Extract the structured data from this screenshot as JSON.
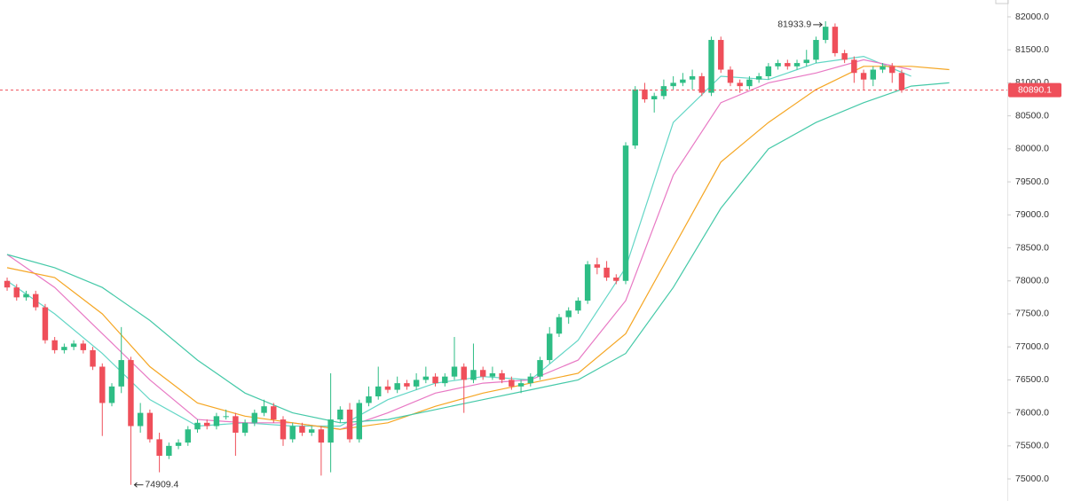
{
  "chart_data": {
    "type": "candlestick",
    "up_color": "#2ebd85",
    "down_color": "#ef4f5a",
    "ylim": [
      74665,
      82255
    ],
    "xlim": [
      -0.75,
      105.1
    ],
    "yticks": [
      {
        "value": 75000,
        "label": "75000.0"
      },
      {
        "value": 75500,
        "label": "75500.0"
      },
      {
        "value": 76000,
        "label": "76000.0"
      },
      {
        "value": 76500,
        "label": "76500.0"
      },
      {
        "value": 77000,
        "label": "77000.0"
      },
      {
        "value": 77500,
        "label": "77500.0"
      },
      {
        "value": 78000,
        "label": "78000.0"
      },
      {
        "value": 78500,
        "label": "78500.0"
      },
      {
        "value": 79000,
        "label": "79000.0"
      },
      {
        "value": 79500,
        "label": "79500.0"
      },
      {
        "value": 80000,
        "label": "80000.0"
      },
      {
        "value": 80500,
        "label": "80500.0"
      },
      {
        "value": 81000,
        "label": "81000.0"
      },
      {
        "value": 81500,
        "label": "81500.0"
      },
      {
        "value": 82000,
        "label": "82000.0"
      }
    ],
    "candles": [
      [
        78000,
        78050,
        77850,
        77900
      ],
      [
        77900,
        77950,
        77700,
        77750
      ],
      [
        77750,
        77850,
        77700,
        77800
      ],
      [
        77800,
        77850,
        77550,
        77600
      ],
      [
        77600,
        77650,
        77050,
        77100
      ],
      [
        77100,
        77150,
        76900,
        76950
      ],
      [
        76950,
        77050,
        76900,
        77000
      ],
      [
        77000,
        77100,
        76950,
        77050
      ],
      [
        77050,
        77100,
        76900,
        76950
      ],
      [
        76950,
        77000,
        76650,
        76700
      ],
      [
        76700,
        76750,
        75650,
        76150
      ],
      [
        76150,
        76450,
        76100,
        76400
      ],
      [
        76400,
        77300,
        76300,
        76800
      ],
      [
        76800,
        76850,
        74909.4,
        75800
      ],
      [
        75800,
        76150,
        75700,
        76000
      ],
      [
        76000,
        76050,
        75550,
        75600
      ],
      [
        75600,
        75700,
        75100,
        75350
      ],
      [
        75350,
        75550,
        75300,
        75500
      ],
      [
        75500,
        75600,
        75450,
        75550
      ],
      [
        75550,
        75800,
        75500,
        75750
      ],
      [
        75750,
        75900,
        75700,
        75850
      ],
      [
        75850,
        75900,
        75750,
        75800
      ],
      [
        75800,
        76000,
        75750,
        75950
      ],
      [
        75950,
        76050,
        75900,
        75950
      ],
      [
        75950,
        76000,
        75350,
        75700
      ],
      [
        75700,
        75900,
        75650,
        75850
      ],
      [
        75850,
        76050,
        75800,
        76000
      ],
      [
        76000,
        76200,
        75950,
        76100
      ],
      [
        76100,
        76150,
        75850,
        75900
      ],
      [
        75900,
        75950,
        75500,
        75600
      ],
      [
        75600,
        75850,
        75550,
        75800
      ],
      [
        75800,
        75850,
        75650,
        75700
      ],
      [
        75700,
        75800,
        75650,
        75750
      ],
      [
        75750,
        75800,
        75050,
        75550
      ],
      [
        75550,
        76600,
        75100,
        75900
      ],
      [
        75900,
        76100,
        75850,
        76050
      ],
      [
        76050,
        76150,
        75550,
        75600
      ],
      [
        75600,
        76200,
        75550,
        76150
      ],
      [
        76150,
        76400,
        76100,
        76250
      ],
      [
        76250,
        76700,
        76200,
        76400
      ],
      [
        76400,
        76500,
        76300,
        76350
      ],
      [
        76350,
        76550,
        76300,
        76450
      ],
      [
        76450,
        76500,
        76350,
        76400
      ],
      [
        76400,
        76600,
        76350,
        76500
      ],
      [
        76500,
        76700,
        76450,
        76550
      ],
      [
        76550,
        76600,
        76400,
        76450
      ],
      [
        76450,
        76600,
        76400,
        76550
      ],
      [
        76550,
        77150,
        76500,
        76700
      ],
      [
        76700,
        76750,
        76000,
        76500
      ],
      [
        76500,
        77050,
        76450,
        76650
      ],
      [
        76650,
        76700,
        76500,
        76550
      ],
      [
        76550,
        76700,
        76500,
        76600
      ],
      [
        76600,
        76650,
        76450,
        76500
      ],
      [
        76500,
        76550,
        76350,
        76400
      ],
      [
        76400,
        76500,
        76300,
        76450
      ],
      [
        76450,
        76600,
        76400,
        76550
      ],
      [
        76550,
        76850,
        76500,
        76800
      ],
      [
        76800,
        77300,
        76750,
        77200
      ],
      [
        77200,
        77500,
        77150,
        77450
      ],
      [
        77450,
        77600,
        77350,
        77550
      ],
      [
        77550,
        77750,
        77500,
        77700
      ],
      [
        77700,
        78300,
        77650,
        78250
      ],
      [
        78250,
        78350,
        78100,
        78200
      ],
      [
        78200,
        78300,
        78000,
        78050
      ],
      [
        78050,
        78100,
        77950,
        78000
      ],
      [
        78000,
        80100,
        77950,
        80050
      ],
      [
        80050,
        80950,
        80000,
        80900
      ],
      [
        80900,
        81000,
        80700,
        80750
      ],
      [
        80750,
        80850,
        80550,
        80800
      ],
      [
        80800,
        81050,
        80750,
        80950
      ],
      [
        80950,
        81100,
        80900,
        81000
      ],
      [
        81000,
        81150,
        80950,
        81050
      ],
      [
        81050,
        81200,
        80900,
        81100
      ],
      [
        81100,
        81150,
        80800,
        80850
      ],
      [
        80850,
        81700,
        80800,
        81650
      ],
      [
        81650,
        81700,
        81150,
        81200
      ],
      [
        81200,
        81250,
        80950,
        81000
      ],
      [
        81000,
        81050,
        80850,
        80950
      ],
      [
        80950,
        81100,
        80900,
        81050
      ],
      [
        81050,
        81150,
        81000,
        81100
      ],
      [
        81100,
        81300,
        81050,
        81250
      ],
      [
        81250,
        81350,
        81200,
        81300
      ],
      [
        81300,
        81350,
        81200,
        81250
      ],
      [
        81250,
        81350,
        81200,
        81300
      ],
      [
        81300,
        81500,
        81250,
        81350
      ],
      [
        81350,
        81700,
        81300,
        81650
      ],
      [
        81650,
        81933.9,
        81600,
        81850
      ],
      [
        81850,
        81900,
        81400,
        81450
      ],
      [
        81450,
        81500,
        81300,
        81350
      ],
      [
        81350,
        81400,
        81000,
        81150
      ],
      [
        81150,
        81200,
        80900,
        81050
      ],
      [
        81050,
        81250,
        80950,
        81200
      ],
      [
        81200,
        81300,
        81150,
        81250
      ],
      [
        81250,
        81300,
        81000,
        81150
      ],
      [
        81150,
        81200,
        80850,
        80890.1
      ]
    ],
    "series": [
      {
        "color": "#63d6c6",
        "x": [
          0,
          5,
          10,
          15,
          20,
          25,
          30,
          35,
          40,
          45,
          50,
          55,
          60,
          65,
          70,
          75,
          80,
          85,
          90,
          95
        ],
        "values": [
          78000,
          77500,
          76900,
          76200,
          75800,
          75850,
          75800,
          75800,
          76200,
          76450,
          76550,
          76500,
          77100,
          78200,
          80400,
          81100,
          81050,
          81300,
          81400,
          81100
        ]
      },
      {
        "color": "#e879c4",
        "x": [
          0,
          5,
          10,
          15,
          20,
          25,
          30,
          35,
          40,
          45,
          50,
          55,
          60,
          65,
          70,
          75,
          80,
          85,
          90,
          95
        ],
        "values": [
          78400,
          77900,
          77200,
          76500,
          75900,
          75850,
          75850,
          75750,
          76000,
          76300,
          76450,
          76500,
          76800,
          77700,
          79600,
          80700,
          81000,
          81150,
          81350,
          81200
        ]
      },
      {
        "color": "#f5a623",
        "x": [
          0,
          5,
          10,
          15,
          20,
          25,
          30,
          35,
          40,
          45,
          50,
          55,
          60,
          65,
          70,
          75,
          80,
          85,
          90,
          95,
          99
        ],
        "values": [
          78200,
          78050,
          77500,
          76700,
          76150,
          75950,
          75850,
          75750,
          75850,
          76100,
          76300,
          76450,
          76600,
          77200,
          78500,
          79800,
          80400,
          80900,
          81250,
          81250,
          81200
        ]
      },
      {
        "color": "#45c9a8",
        "x": [
          0,
          5,
          10,
          15,
          20,
          25,
          30,
          35,
          40,
          45,
          50,
          55,
          60,
          65,
          70,
          75,
          80,
          85,
          90,
          95,
          99
        ],
        "values": [
          78400,
          78200,
          77900,
          77400,
          76800,
          76300,
          76000,
          75850,
          75900,
          76050,
          76200,
          76350,
          76500,
          76900,
          77900,
          79100,
          80000,
          80400,
          80700,
          80950,
          81000
        ]
      }
    ]
  }
}
